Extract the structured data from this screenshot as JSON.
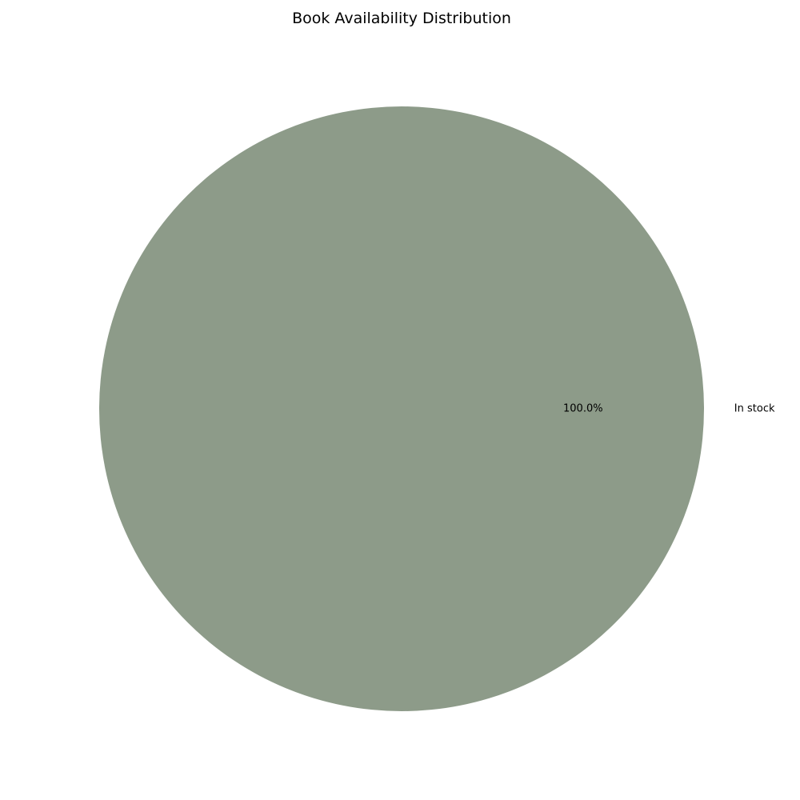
{
  "chart_data": {
    "type": "pie",
    "title": "Book Availability Distribution",
    "labels": [
      "In stock"
    ],
    "values": [
      100
    ],
    "percent_labels": [
      "100.0%"
    ],
    "colors": [
      "#8d9b89"
    ],
    "start_angle_deg": 180,
    "legend": "none"
  }
}
